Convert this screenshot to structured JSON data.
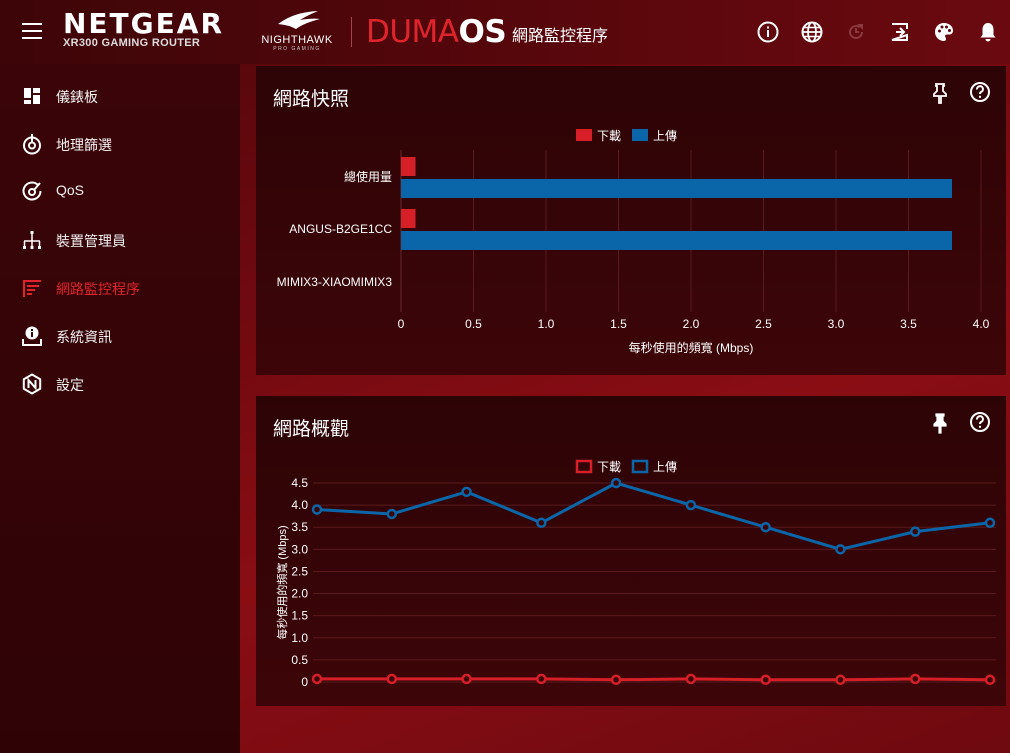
{
  "header": {
    "brand": "NETGEAR",
    "model": "XR300 GAMING ROUTER",
    "nighthawk": "NIGHTHAWK",
    "nighthawk_sub": "PRO GAMING",
    "os_part1": "DUMA",
    "os_part2": "OS",
    "app_title": "網路監控程序",
    "icons": [
      "info-icon",
      "globe-icon",
      "refresh-icon",
      "logout-icon",
      "palette-icon",
      "bell-icon"
    ]
  },
  "sidebar": {
    "items": [
      {
        "label": "儀錶板",
        "icon": "dashboard-icon"
      },
      {
        "label": "地理篩選",
        "icon": "geo-filter-icon"
      },
      {
        "label": "QoS",
        "icon": "qos-icon"
      },
      {
        "label": "裝置管理員",
        "icon": "device-manager-icon"
      },
      {
        "label": "網路監控程序",
        "icon": "network-monitor-icon",
        "active": true
      },
      {
        "label": "系統資訊",
        "icon": "system-info-icon"
      },
      {
        "label": "設定",
        "icon": "settings-icon"
      }
    ]
  },
  "colors": {
    "accent": "#e0242c",
    "download": "#d61f27",
    "upload": "#0a66a8"
  },
  "snapshot": {
    "title": "網路快照",
    "chart_data": {
      "type": "bar",
      "orientation": "horizontal",
      "categories": [
        "總使用量",
        "ANGUS-B2GE1CC",
        "MIMIX3-XIAOMIMIX3"
      ],
      "series": [
        {
          "name": "下載",
          "values": [
            0.1,
            0.1,
            0
          ]
        },
        {
          "name": "上傳",
          "values": [
            3.8,
            3.8,
            0
          ]
        }
      ],
      "xlabel": "每秒使用的頻寬 (Mbps)",
      "xlim": [
        0,
        4.0
      ],
      "xticks": [
        "0",
        "0.5",
        "1.0",
        "1.5",
        "2.0",
        "2.5",
        "3.0",
        "3.5",
        "4.0"
      ],
      "legend": "top-center",
      "grid": true
    }
  },
  "overview": {
    "title": "網路概觀",
    "chart_data": {
      "type": "line",
      "x": [
        1,
        2,
        3,
        4,
        5,
        6,
        7,
        8,
        9,
        10
      ],
      "series": [
        {
          "name": "下載",
          "values": [
            0.07,
            0.07,
            0.07,
            0.07,
            0.05,
            0.07,
            0.05,
            0.05,
            0.07,
            0.05
          ]
        },
        {
          "name": "上傳",
          "values": [
            3.9,
            3.8,
            4.3,
            3.6,
            4.5,
            4.0,
            3.5,
            3.0,
            3.4,
            3.6
          ]
        }
      ],
      "ylabel": "每秒使用的頻寬 (Mbps)",
      "ylim": [
        0,
        4.5
      ],
      "yticks": [
        "0",
        "0.5",
        "1.0",
        "1.5",
        "2.0",
        "2.5",
        "3.0",
        "3.5",
        "4.0",
        "4.5"
      ],
      "legend": "top-center",
      "grid": true
    }
  }
}
